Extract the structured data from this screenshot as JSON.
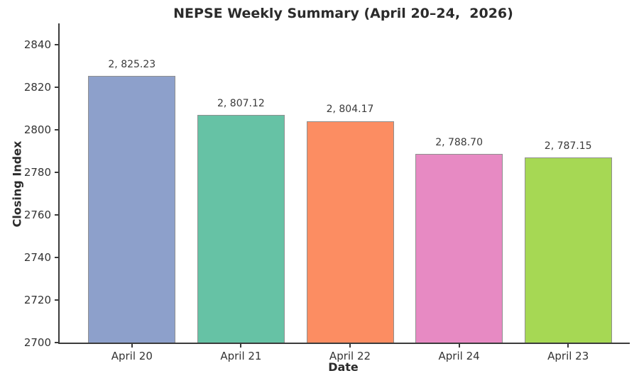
{
  "figure": {
    "background": "#ffffff"
  },
  "chart_data": {
    "type": "bar",
    "title": "NEPSE Weekly Summary (April 20–24,  2026)",
    "xlabel": "Date",
    "ylabel": "Closing Index",
    "categories": [
      "April 20",
      "April 21",
      "April 22",
      "April 24",
      "April 23"
    ],
    "values": [
      2825.23,
      2807.12,
      2804.17,
      2788.7,
      2787.15
    ],
    "value_labels": [
      "2, 825.23",
      "2, 807.12",
      "2, 804.17",
      "2, 788.70",
      "2, 787.15"
    ],
    "bar_colors": [
      "#8da0cb",
      "#66c2a5",
      "#fc8d62",
      "#e78ac3",
      "#a6d854"
    ],
    "bar_edge_color": "#8f8f8f",
    "ylim": [
      2700,
      2850
    ],
    "yticks": [
      2700,
      2720,
      2740,
      2760,
      2780,
      2800,
      2820,
      2840
    ],
    "grid": false,
    "legend": false,
    "axis_color": "#3b3b3b",
    "text_color": "#333333"
  }
}
